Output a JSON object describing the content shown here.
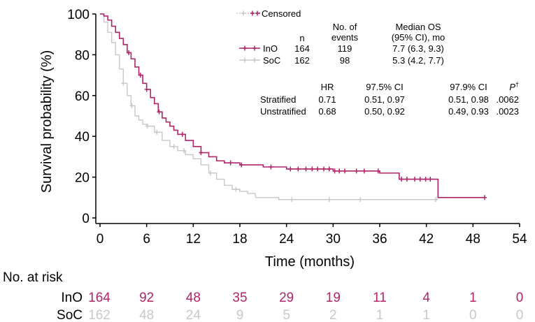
{
  "chart_data": {
    "type": "line",
    "xlabel": "Time (months)",
    "ylabel": "Survival probability (%)",
    "xlim": [
      0,
      54
    ],
    "ylim": [
      0,
      100
    ],
    "xticks": [
      0,
      6,
      12,
      18,
      24,
      30,
      36,
      42,
      48,
      54
    ],
    "yticks": [
      0,
      20,
      40,
      60,
      80,
      100
    ],
    "grid": false,
    "legend_placement": "top-right",
    "censored_label": "Censored",
    "legend_headers": {
      "n": "n",
      "events_line1": "No. of",
      "events_line2": "events",
      "median_line1": "Median OS",
      "median_line2": "(95% CI), mo"
    },
    "series": [
      {
        "name": "InO",
        "color": "#b0246a",
        "n": "164",
        "events": "119",
        "median": "7.7 (6.3, 9.3)",
        "x": [
          0,
          0.5,
          1.0,
          1.5,
          2.0,
          2.5,
          3.0,
          3.5,
          4.0,
          4.5,
          5.0,
          5.5,
          6.0,
          6.5,
          7.0,
          7.5,
          8.0,
          8.5,
          9.0,
          9.5,
          10.0,
          11.0,
          12.0,
          13.0,
          14.0,
          15.0,
          16.0,
          17.0,
          18.0,
          19.0,
          20.0,
          21.0,
          22.0,
          23.0,
          24.0,
          27.0,
          29.0,
          30.0,
          33.0,
          35.0,
          36.0,
          38.5,
          41.0,
          43.5,
          49.5
        ],
        "y": [
          100,
          99,
          97,
          94,
          91,
          88,
          85,
          81,
          78,
          74,
          70,
          66,
          63,
          59,
          56,
          52,
          49,
          47,
          45,
          43,
          41,
          38,
          35,
          32,
          30,
          28,
          27,
          27,
          26,
          26,
          26,
          25,
          25,
          25,
          24,
          24,
          24,
          23,
          23,
          23,
          22,
          19,
          19,
          10,
          10
        ],
        "censor_x": [
          3.7,
          5.2,
          6.0,
          7.6,
          10.6,
          13.0,
          16.8,
          18.2,
          22.0,
          24.5,
          25.5,
          26.5,
          27.3,
          28.0,
          28.8,
          29.5,
          30.2,
          30.8,
          31.5,
          33.0,
          34.0,
          35.8,
          38.8,
          39.5,
          40.5,
          41.2,
          41.9,
          42.5,
          49.5
        ]
      },
      {
        "name": "SoC",
        "color": "#c8c8c8",
        "n": "162",
        "events": "98",
        "median": "5.3 (4.2, 7.7)",
        "x": [
          0,
          0.5,
          1.0,
          1.5,
          2.0,
          2.5,
          3.0,
          3.5,
          4.0,
          4.5,
          5.0,
          5.5,
          6.0,
          7.0,
          8.0,
          9.0,
          10.0,
          11.0,
          12.0,
          13.0,
          14.0,
          15.0,
          16.0,
          17.0,
          18.0,
          19.0,
          20.0,
          23.0,
          26.0,
          43.5
        ],
        "y": [
          100,
          96,
          91,
          86,
          80,
          73,
          66,
          60,
          55,
          50,
          48,
          46,
          45,
          42,
          38,
          35,
          33,
          31,
          29,
          26,
          22,
          19,
          16,
          14,
          13,
          12,
          10,
          9,
          9,
          9
        ],
        "censor_x": [
          3.0,
          4.1,
          6.1,
          7.3,
          9.5,
          10.8,
          14.2,
          17.5,
          24.7,
          29.5,
          33.5,
          43.2
        ]
      }
    ],
    "hr_table": {
      "headers": [
        "HR",
        "97.5% CI",
        "97.9% CI",
        "P"
      ],
      "p_superscript": "†",
      "rows": [
        {
          "label": "Stratified",
          "values": [
            "0.71",
            "0.51, 0.97",
            "0.51, 0.98",
            ".0062"
          ]
        },
        {
          "label": "Unstratified",
          "values": [
            "0.68",
            "0.50, 0.92",
            "0.49, 0.93",
            ".0023"
          ]
        }
      ]
    },
    "risk_table": {
      "title": "No. at risk",
      "rows": [
        {
          "arm": "InO",
          "color": "#b0246a",
          "values": [
            "164",
            "92",
            "48",
            "35",
            "29",
            "19",
            "11",
            "4",
            "1",
            "0"
          ]
        },
        {
          "arm": "SoC",
          "color": "#c8c8c8",
          "values": [
            "162",
            "48",
            "24",
            "9",
            "5",
            "2",
            "1",
            "1",
            "0",
            "0"
          ]
        }
      ]
    }
  }
}
